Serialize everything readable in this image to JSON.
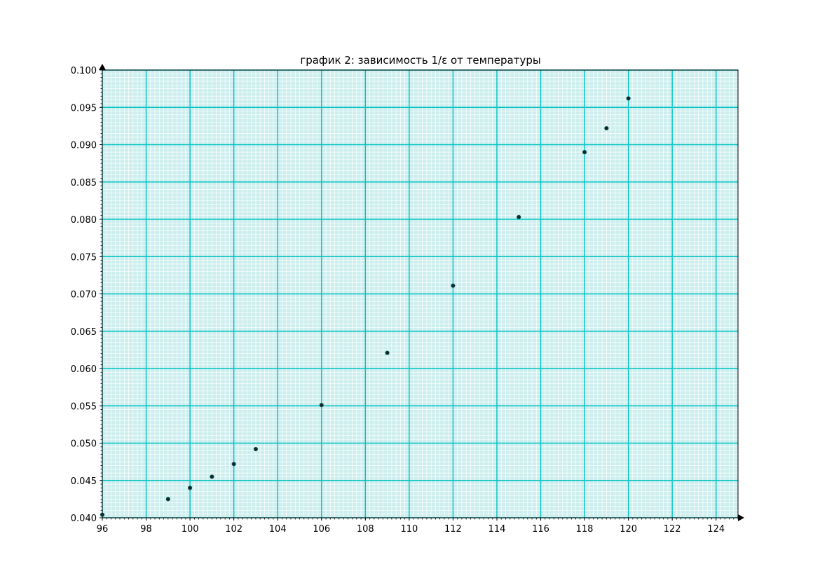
{
  "chart_data": {
    "type": "scatter",
    "title": "график 2: зависимость 1/ε от температуры",
    "xlabel": "",
    "ylabel": "",
    "xlim": [
      96,
      125
    ],
    "ylim": [
      0.04,
      0.1
    ],
    "grid": true,
    "x_major_ticks": [
      96,
      98,
      100,
      102,
      104,
      106,
      108,
      110,
      112,
      114,
      116,
      118,
      120,
      122,
      124
    ],
    "x_tick_labels": [
      "96",
      "98",
      "100",
      "102",
      "104",
      "106",
      "108",
      "110",
      "112",
      "114",
      "116",
      "118",
      "120",
      "122",
      "124"
    ],
    "y_major_ticks": [
      0.04,
      0.045,
      0.05,
      0.055,
      0.06,
      0.065,
      0.07,
      0.075,
      0.08,
      0.085,
      0.09,
      0.095,
      0.1
    ],
    "y_tick_labels": [
      "0.040",
      "0.045",
      "0.050",
      "0.055",
      "0.060",
      "0.065",
      "0.070",
      "0.075",
      "0.080",
      "0.085",
      "0.090",
      "0.095",
      "0.100"
    ],
    "x_minor_step": 0.2,
    "y_minor_step": 0.0005,
    "series": [
      {
        "x": [
          96,
          99,
          100,
          101,
          102,
          103,
          106,
          109,
          112,
          115,
          118,
          119,
          120
        ],
        "y": [
          0.0404,
          0.0425,
          0.044,
          0.0455,
          0.0472,
          0.0492,
          0.0551,
          0.0621,
          0.0711,
          0.0803,
          0.089,
          0.0922,
          0.0962
        ]
      }
    ],
    "colors": {
      "background": "#ffffff",
      "plot_background": "#cdeeee",
      "major_grid": "#00c3c3",
      "minor_grid": "#ffffff",
      "marker_fill": "#0d2a2a",
      "axis": "#000000"
    }
  }
}
